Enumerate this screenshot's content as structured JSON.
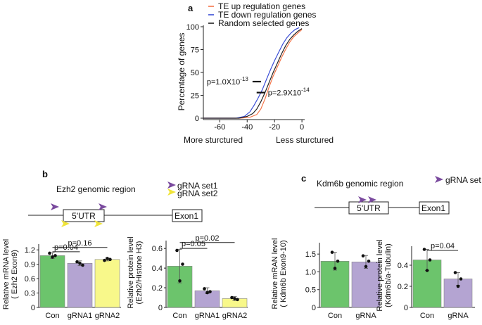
{
  "panel_labels": {
    "a": "a",
    "b": "b",
    "c": "c"
  },
  "colors": {
    "te_up": "#f5764a",
    "te_down": "#3a4dd6",
    "random": "#222222",
    "con": "#6cc46c",
    "grna": "#b4a4d2",
    "grna2": "#f8f88a",
    "grna_set1_arrow": "#7a4a9e",
    "grna_set2_arrow": "#f0e43a"
  },
  "chart_data": [
    {
      "id": "a",
      "type": "line",
      "title": "",
      "xlabel_left": "More sturctured",
      "xlabel_right": "Less sturctured",
      "ylabel": "Percentage of genes",
      "xlim": [
        -72,
        2
      ],
      "ylim": [
        0,
        100
      ],
      "xticks": [
        -60,
        -40,
        -20,
        0
      ],
      "yticks": [
        0,
        25,
        50,
        75,
        100
      ],
      "legend": [
        "TE up regulation genes",
        "TE down regulation genes",
        "Random selected genes"
      ],
      "series": [
        {
          "name": "TE up regulation genes",
          "color_key": "te_up",
          "x": [
            -72,
            -45,
            -38,
            -33,
            -30,
            -27,
            -24,
            -21,
            -18,
            -15,
            -12,
            -9,
            -6,
            -3,
            0
          ],
          "y": [
            0,
            0,
            1,
            4,
            10,
            21,
            34,
            46,
            56,
            66,
            75,
            83,
            89,
            93,
            97
          ]
        },
        {
          "name": "TE down regulation genes",
          "color_key": "te_down",
          "x": [
            -72,
            -48,
            -42,
            -38,
            -35,
            -32,
            -29,
            -26,
            -23,
            -20,
            -17,
            -14,
            -11,
            -8,
            -5,
            -2
          ],
          "y": [
            0,
            0,
            2,
            7,
            14,
            22,
            31,
            42,
            53,
            63,
            72,
            81,
            88,
            93,
            97,
            99
          ]
        },
        {
          "name": "Random selected genes",
          "color_key": "random",
          "x": [
            -72,
            -46,
            -40,
            -36,
            -33,
            -30,
            -27,
            -24,
            -21,
            -18,
            -15,
            -12,
            -9,
            -6,
            -3,
            0
          ],
          "y": [
            0,
            0,
            2,
            5,
            10,
            18,
            28,
            39,
            50,
            60,
            70,
            79,
            86,
            91,
            95,
            98
          ]
        }
      ],
      "annotations": [
        {
          "prefix": "p=1.0X10",
          "exp": "-13",
          "x": -33,
          "y": 40
        },
        {
          "prefix": "p=2.9X10",
          "exp": "-14",
          "x": -30,
          "y": 28
        }
      ]
    },
    {
      "id": "b-left",
      "type": "bar",
      "ylabel": [
        "Relative mRNA level",
        "( Ezh2 Exon9)"
      ],
      "categories": [
        "Con",
        "gRNA1",
        "gRNA2"
      ],
      "values": [
        1.08,
        0.92,
        1.0
      ],
      "errors": [
        0.06,
        0.05,
        0.03
      ],
      "points": [
        [
          1.13,
          1.08,
          1.05
        ],
        [
          0.95,
          0.88,
          0.92
        ],
        [
          0.98,
          1.0,
          1.02
        ]
      ],
      "color_keys": [
        "con",
        "grna",
        "grna2"
      ],
      "ylim": [
        0,
        1.32
      ],
      "yticks": [
        "0",
        "0.3",
        "0.6",
        "0.9",
        "1.2"
      ],
      "ytick_values": [
        0,
        0.3,
        0.6,
        0.9,
        1.2
      ],
      "significance": [
        {
          "label": "p=0.16",
          "from": 0,
          "to": 2,
          "level": 1.25
        },
        {
          "label": "p=0.04",
          "from": 0,
          "to": 1,
          "level": 1.16
        }
      ]
    },
    {
      "id": "b-right",
      "type": "bar",
      "ylabel": [
        "Relative  protein level",
        "(Ezh2/Histone H3)"
      ],
      "categories": [
        "Con",
        "gRNA1",
        "gRNA2"
      ],
      "values": [
        0.42,
        0.17,
        0.09
      ],
      "errors": [
        0.17,
        0.03,
        0.02
      ],
      "points": [
        [
          0.58,
          0.44,
          0.27
        ],
        [
          0.19,
          0.16,
          0.15
        ],
        [
          0.1,
          0.08,
          0.09
        ]
      ],
      "color_keys": [
        "con",
        "grna",
        "grna2"
      ],
      "ylim": [
        0,
        0.68
      ],
      "yticks": [
        "0",
        "0.2",
        "0.4",
        "0.6"
      ],
      "ytick_values": [
        0,
        0.2,
        0.4,
        0.6
      ],
      "significance": [
        {
          "label": "p=0.02",
          "from": 0,
          "to": 2,
          "level": 0.66
        },
        {
          "label": "p=0.05",
          "from": 0,
          "to": 1,
          "level": 0.6
        }
      ]
    },
    {
      "id": "c-left",
      "type": "bar",
      "ylabel": [
        "Relative mRAN level",
        "( Kdm6b Exon9-10)"
      ],
      "categories": [
        "Con",
        "gRNA"
      ],
      "values": [
        1.3,
        1.28
      ],
      "errors": [
        0.25,
        0.18
      ],
      "points": [
        [
          1.55,
          1.3,
          1.1
        ],
        [
          1.45,
          1.3,
          1.15
        ]
      ],
      "color_keys": [
        "con",
        "grna"
      ],
      "ylim": [
        0,
        1.82
      ],
      "yticks": [
        "0",
        "0.5",
        "1.0",
        "1.5"
      ],
      "ytick_values": [
        0,
        0.5,
        1.0,
        1.5
      ],
      "significance": []
    },
    {
      "id": "c-right",
      "type": "bar",
      "ylabel": [
        "Relative  protein level",
        "(Kdm6b/a-Tubulin)"
      ],
      "categories": [
        "Con",
        "gRNA"
      ],
      "values": [
        0.45,
        0.27
      ],
      "errors": [
        0.1,
        0.06
      ],
      "points": [
        [
          0.55,
          0.45,
          0.35
        ],
        [
          0.33,
          0.27,
          0.2
        ]
      ],
      "color_keys": [
        "con",
        "grna"
      ],
      "ylim": [
        0,
        0.58
      ],
      "yticks": [
        "0",
        "0.2",
        "0.4"
      ],
      "ytick_values": [
        0,
        0.2,
        0.4
      ],
      "significance": [
        {
          "label": "p=0.04",
          "from": 0,
          "to": 1,
          "level": 0.54
        }
      ]
    }
  ],
  "panel_b": {
    "region_title": "Ezh2 genomic region",
    "legend_set1": "gRNA set1",
    "legend_set2": "gRNA set2",
    "utr_label": "5'UTR",
    "exon_label": "Exon1"
  },
  "panel_c": {
    "region_title": "Kdm6b genomic region",
    "legend_set": "gRNA set",
    "utr_label": "5'UTR",
    "exon_label": "Exon1"
  }
}
